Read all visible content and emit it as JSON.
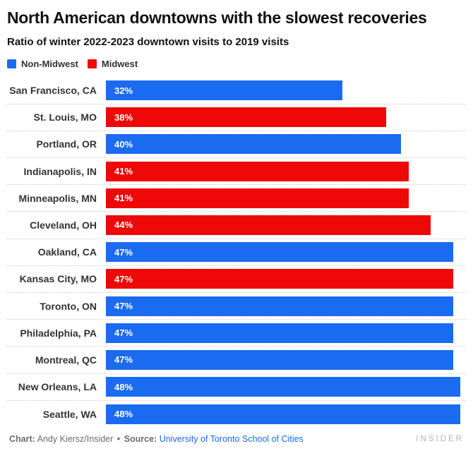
{
  "header": {
    "title": "North American downtowns with the slowest recoveries",
    "subtitle": "Ratio of winter 2022-2023 downtown visits to 2019 visits"
  },
  "colors": {
    "non_midwest": "#1A6BEF",
    "midwest": "#EE0808",
    "link_blue": "#1A6BEF",
    "label_gray": "#333333",
    "footer_gray": "#6d6d6d",
    "brand_gray": "#b5b5b5",
    "separator_dotted": "#cccccc"
  },
  "legend": [
    {
      "label": "Non-Midwest",
      "color_key": "non_midwest"
    },
    {
      "label": "Midwest",
      "color_key": "midwest"
    }
  ],
  "chart_data": {
    "type": "bar",
    "orientation": "horizontal",
    "title": "North American downtowns with the slowest recoveries",
    "subtitle": "Ratio of winter 2022-2023 downtown visits to 2019 visits",
    "unit": "%",
    "xlim": [
      0,
      48
    ],
    "legend_position": "top-left",
    "grid": "dotted row separators only",
    "value_labels": "inside bar start, white bold",
    "categories": [
      "San Francisco, CA",
      "St. Louis, MO",
      "Portland, OR",
      "Indianapolis, IN",
      "Minneapolis, MN",
      "Cleveland, OH",
      "Oakland, CA",
      "Kansas City, MO",
      "Toronto, ON",
      "Philadelphia, PA",
      "Montreal, QC",
      "New Orleans, LA",
      "Seattle, WA"
    ],
    "values": [
      32,
      38,
      40,
      41,
      41,
      44,
      47,
      47,
      47,
      47,
      47,
      48,
      48
    ],
    "bars": [
      {
        "label": "San Francisco, CA",
        "value": 32,
        "value_label": "32%",
        "group": "Non-Midwest"
      },
      {
        "label": "St. Louis, MO",
        "value": 38,
        "value_label": "38%",
        "group": "Midwest"
      },
      {
        "label": "Portland, OR",
        "value": 40,
        "value_label": "40%",
        "group": "Non-Midwest"
      },
      {
        "label": "Indianapolis, IN",
        "value": 41,
        "value_label": "41%",
        "group": "Midwest"
      },
      {
        "label": "Minneapolis, MN",
        "value": 41,
        "value_label": "41%",
        "group": "Midwest"
      },
      {
        "label": "Cleveland, OH",
        "value": 44,
        "value_label": "44%",
        "group": "Midwest"
      },
      {
        "label": "Oakland, CA",
        "value": 47,
        "value_label": "47%",
        "group": "Non-Midwest"
      },
      {
        "label": "Kansas City, MO",
        "value": 47,
        "value_label": "47%",
        "group": "Midwest"
      },
      {
        "label": "Toronto, ON",
        "value": 47,
        "value_label": "47%",
        "group": "Non-Midwest"
      },
      {
        "label": "Philadelphia, PA",
        "value": 47,
        "value_label": "47%",
        "group": "Non-Midwest"
      },
      {
        "label": "Montreal, QC",
        "value": 47,
        "value_label": "47%",
        "group": "Non-Midwest"
      },
      {
        "label": "New Orleans, LA",
        "value": 48,
        "value_label": "48%",
        "group": "Non-Midwest"
      },
      {
        "label": "Seattle, WA",
        "value": 48,
        "value_label": "48%",
        "group": "Non-Midwest"
      }
    ]
  },
  "footer": {
    "credit_label": "Chart:",
    "credit": "Andy Kiersz/Insider",
    "separator": "•",
    "source_label": "Source:",
    "source": "University of Toronto School of Cities",
    "brand": "INSIDER"
  }
}
